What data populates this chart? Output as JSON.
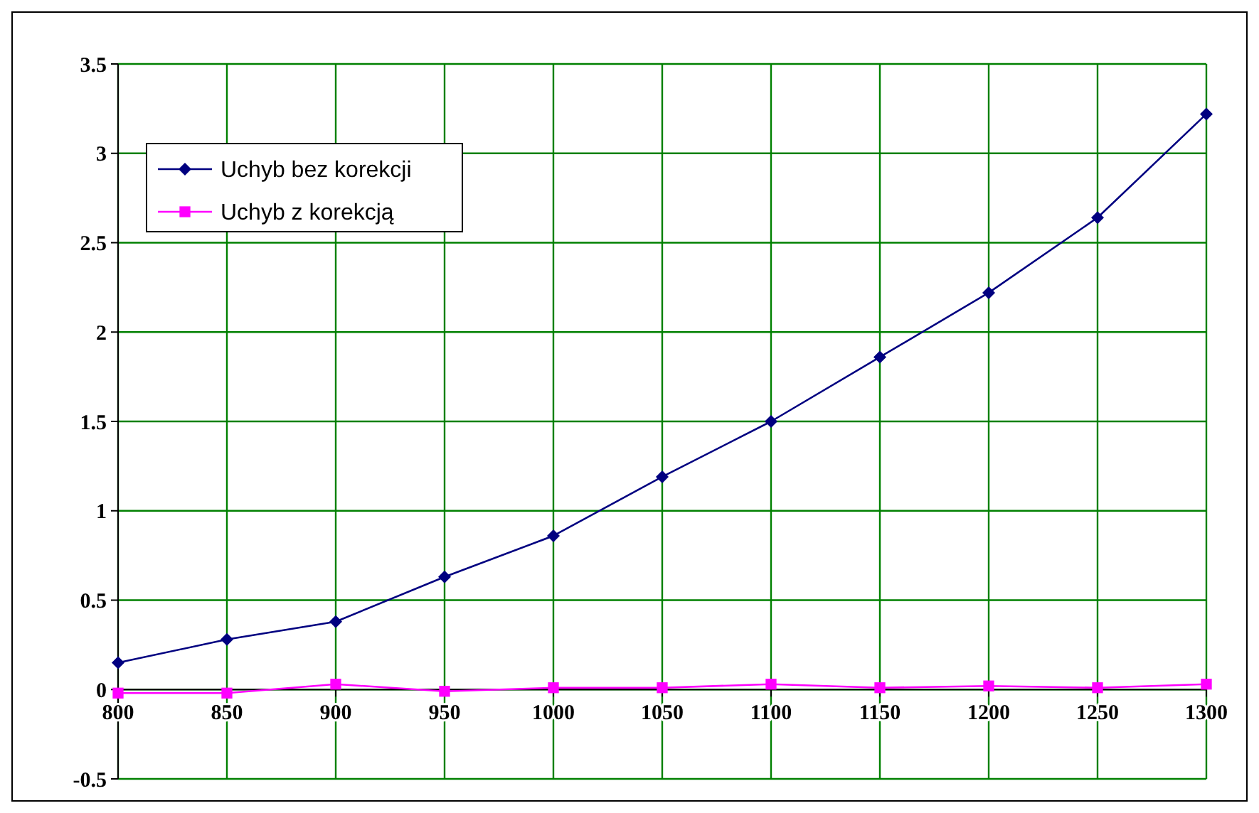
{
  "chart_data": {
    "type": "line",
    "x": [
      800,
      850,
      900,
      950,
      1000,
      1050,
      1100,
      1150,
      1200,
      1250,
      1300
    ],
    "series": [
      {
        "name": "Uchyb bez korekcji",
        "color": "#000080",
        "marker": "diamond",
        "values": [
          0.15,
          0.28,
          0.38,
          0.63,
          0.86,
          1.19,
          1.5,
          1.86,
          2.22,
          2.64,
          3.22
        ]
      },
      {
        "name": "Uchyb z korekcją",
        "color": "#ff00ff",
        "marker": "square",
        "values": [
          -0.02,
          -0.02,
          0.03,
          -0.01,
          0.01,
          0.01,
          0.03,
          0.01,
          0.02,
          0.01,
          0.03
        ]
      }
    ],
    "xlim": [
      800,
      1300
    ],
    "xticks": [
      800,
      850,
      900,
      950,
      1000,
      1050,
      1100,
      1150,
      1200,
      1250,
      1300
    ],
    "ylim": [
      -0.5,
      3.5
    ],
    "yticks": [
      -0.5,
      0,
      0.5,
      1,
      1.5,
      2,
      2.5,
      3,
      3.5
    ],
    "grid": true,
    "legend": "top left",
    "line_style": "solid"
  }
}
